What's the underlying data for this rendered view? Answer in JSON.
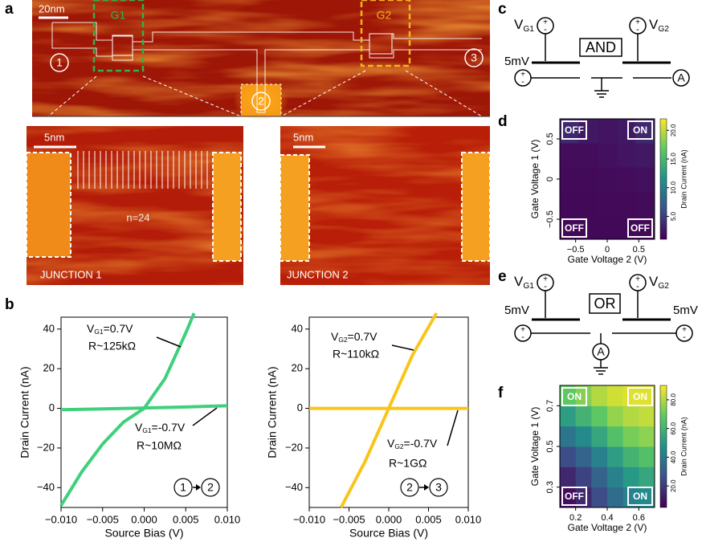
{
  "panel_labels": {
    "a": "a",
    "b": "b",
    "c": "c",
    "d": "d",
    "e": "e",
    "f": "f"
  },
  "stm": {
    "scale_bar": "20nm",
    "gates": [
      "G1",
      "G2"
    ],
    "nodes": [
      "1",
      "2",
      "3"
    ],
    "junction_scale_bar": "5nm",
    "junction_count": "n=24",
    "junctions": [
      "JUNCTION 1",
      "JUNCTION 2"
    ]
  },
  "circuits": {
    "gate_voltages": [
      {
        "main": "V",
        "sub": "G1"
      },
      {
        "main": "V",
        "sub": "G2"
      }
    ],
    "and_label": "AND",
    "or_label": "OR",
    "source": "5mV",
    "meter": "A",
    "plus": "+",
    "minus": "-"
  },
  "chart_data": [
    {
      "type": "line",
      "xlabel": "Source Bias (V)",
      "ylabel": "Drain Current (nA)",
      "xlim": [
        -0.01,
        0.01
      ],
      "ylim": [
        -50,
        46
      ],
      "xticks": [
        {
          "value": -0.01,
          "label": "−0.010"
        },
        {
          "value": -0.005,
          "label": "−0.005"
        },
        {
          "value": 0,
          "label": "0.000"
        },
        {
          "value": 0.005,
          "label": "0.005"
        },
        {
          "value": 0.01,
          "label": "0.010"
        }
      ],
      "yticks": [
        {
          "value": -40,
          "label": "−40"
        },
        {
          "value": -20,
          "label": "−20"
        },
        0,
        20,
        40
      ],
      "series": [
        {
          "color": "#3fd07c",
          "x": [
            -0.01,
            -0.0075,
            -0.005,
            -0.0025,
            0,
            0.0025,
            0.005,
            0.006
          ],
          "values": [
            -49,
            -32,
            -18,
            -7,
            0,
            15,
            38,
            48
          ]
        },
        {
          "color": "#3fd07c",
          "x": [
            -0.01,
            -0.005,
            0,
            0.005,
            0.01
          ],
          "values": [
            -0.7,
            -0.3,
            0.2,
            0.7,
            1.3
          ]
        }
      ],
      "annotations": [
        {
          "label": {
            "main": "V",
            "sub": "G1",
            "rest": "=0.7V"
          },
          "resistance": "R~125kΩ"
        },
        {
          "label": {
            "main": "V",
            "sub": "G1",
            "rest": "=-0.7V"
          },
          "resistance": "R~10MΩ"
        }
      ],
      "direction": {
        "from": "1",
        "to": "2"
      }
    },
    {
      "type": "line",
      "xlabel": "Source Bias (V)",
      "ylabel": "Drain Current (nA)",
      "xlim": [
        -0.01,
        0.01
      ],
      "ylim": [
        -50,
        46
      ],
      "xticks": [
        {
          "value": -0.01,
          "label": "−0.010"
        },
        {
          "value": -0.005,
          "label": "−0.005"
        },
        {
          "value": 0,
          "label": "0.000"
        },
        {
          "value": 0.005,
          "label": "0.005"
        },
        {
          "value": 0.01,
          "label": "0.010"
        }
      ],
      "yticks": [
        {
          "value": -40,
          "label": "−40"
        },
        {
          "value": -20,
          "label": "−20"
        },
        0,
        20,
        40
      ],
      "series": [
        {
          "color": "#f9c51c",
          "x": [
            -0.006,
            -0.003,
            0,
            0.003,
            0.006
          ],
          "values": [
            -50,
            -27,
            0,
            27,
            48
          ]
        },
        {
          "color": "#f9c51c",
          "x": [
            -0.01,
            -0.005,
            0,
            0.005,
            0.01
          ],
          "values": [
            0,
            0,
            0,
            0,
            0
          ]
        }
      ],
      "annotations": [
        {
          "label": {
            "main": "V",
            "sub": "G2",
            "rest": "=0.7V"
          },
          "resistance": "R~110kΩ"
        },
        {
          "label": {
            "main": "V",
            "sub": "G2",
            "rest": "=-0.7V"
          },
          "resistance": "R~1GΩ"
        }
      ],
      "direction": {
        "from": "2",
        "to": "3"
      }
    },
    {
      "type": "heatmap",
      "xlabel": "Gate Voltage 2 (V)",
      "ylabel": "Gate Voltage 1 (V)",
      "xlim": [
        -0.75,
        0.75
      ],
      "ylim": [
        -0.75,
        0.75
      ],
      "xticks": [
        {
          "value": -0.5,
          "label": "−0.5"
        },
        0,
        0.5
      ],
      "yticks": [
        {
          "value": -0.5,
          "label": "−0.5"
        },
        0,
        0.5
      ],
      "z": [
        [
          1.5,
          1.5,
          1.5,
          1.5,
          1.6
        ],
        [
          1.5,
          1.5,
          1.6,
          1.6,
          1.7
        ],
        [
          1.6,
          1.6,
          1.7,
          1.8,
          2.0
        ],
        [
          1.8,
          1.8,
          2.0,
          2.2,
          2.5
        ],
        [
          3.5,
          2.5,
          2.2,
          2.5,
          3.5
        ]
      ],
      "zlim": [
        1,
        22
      ],
      "zticks": [
        {
          "value": 5,
          "label": "5.0"
        },
        {
          "value": 10,
          "label": "10.0"
        },
        {
          "value": 15,
          "label": "15.0"
        },
        {
          "value": 20,
          "label": "20.0"
        }
      ],
      "colorbar_label": "Drain Current (nA)",
      "colormap": "viridis",
      "corner_labels": {
        "top_left": "OFF",
        "top_right": "ON",
        "bottom_left": "OFF",
        "bottom_right": "OFF"
      }
    },
    {
      "type": "heatmap",
      "xlabel": "Gate Voltage 2 (V)",
      "ylabel": "Gate Voltage 1 (V)",
      "xlim": [
        0.1,
        0.7
      ],
      "ylim": [
        0.2,
        0.8
      ],
      "xticks": [
        0.2,
        0.4,
        0.6
      ],
      "yticks": [
        0.3,
        0.5,
        0.7
      ],
      "z": [
        [
          8,
          15,
          25,
          35,
          42,
          45
        ],
        [
          15,
          22,
          32,
          42,
          50,
          55
        ],
        [
          25,
          32,
          42,
          52,
          60,
          65
        ],
        [
          38,
          45,
          55,
          65,
          72,
          75
        ],
        [
          52,
          60,
          68,
          76,
          80,
          82
        ],
        [
          68,
          74,
          80,
          84,
          86,
          86
        ]
      ],
      "zlim": [
        5,
        90
      ],
      "zticks": [
        {
          "value": 20,
          "label": "20.0"
        },
        {
          "value": 40,
          "label": "40.0"
        },
        {
          "value": 60,
          "label": "60.0"
        },
        {
          "value": 80,
          "label": "80.0"
        }
      ],
      "colorbar_label": "Drain Current (nA)",
      "colormap": "viridis",
      "corner_labels": {
        "top_left": "ON",
        "top_right": "ON",
        "bottom_left": "OFF",
        "bottom_right": "ON"
      }
    }
  ]
}
